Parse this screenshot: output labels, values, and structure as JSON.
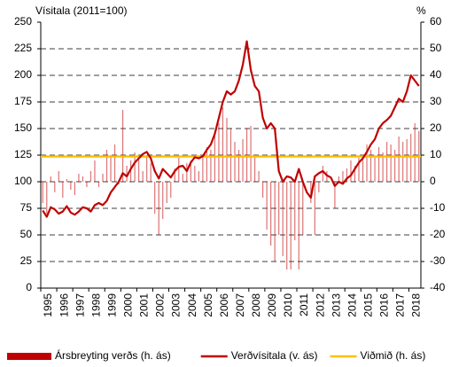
{
  "chart_data": {
    "type": "combo",
    "title": "Vísitala (2011=100)",
    "y2_label": "%",
    "categories": [
      "1995",
      null,
      null,
      null,
      "1996",
      null,
      null,
      null,
      "1997",
      null,
      null,
      null,
      "1998",
      null,
      null,
      null,
      "1999",
      null,
      null,
      null,
      "2000",
      null,
      null,
      null,
      "2001",
      null,
      null,
      null,
      "2002",
      null,
      null,
      null,
      "2003",
      null,
      null,
      null,
      "2004",
      null,
      null,
      null,
      "2005",
      null,
      null,
      null,
      "2006",
      null,
      null,
      null,
      "2007",
      null,
      null,
      null,
      "2008",
      null,
      null,
      null,
      "2009",
      null,
      null,
      null,
      "2010",
      null,
      null,
      null,
      "2011",
      null,
      null,
      null,
      "2012",
      null,
      null,
      null,
      "2013",
      null,
      null,
      null,
      "2014",
      null,
      null,
      null,
      "2015",
      null,
      null,
      null,
      "2016",
      null,
      null,
      null,
      "2017",
      null,
      null,
      null,
      "2018",
      null,
      null
    ],
    "series": [
      {
        "name": "Ársbreyting verðs (h. ás)",
        "type": "bar",
        "axis": "y2",
        "color": "#c00000",
        "values": [
          -8,
          -12,
          2,
          -4,
          4,
          -6,
          1,
          -3,
          -5,
          3,
          2,
          -2,
          4,
          8,
          -2,
          3,
          12,
          10,
          14,
          -1,
          27,
          6,
          8,
          11,
          9,
          4,
          10,
          7,
          -12,
          -20,
          -14,
          -8,
          -6,
          5,
          9,
          3,
          7,
          8,
          6,
          4,
          10,
          13,
          12,
          18,
          22,
          28,
          24,
          20,
          15,
          12,
          16,
          20,
          21,
          10,
          4,
          -6,
          -18,
          -24,
          -30,
          -20,
          -28,
          -33,
          -33,
          -22,
          -33,
          -20,
          0,
          -8,
          -20,
          -4,
          6,
          4,
          0,
          -10,
          2,
          4,
          5,
          8,
          6,
          9,
          10,
          14,
          12,
          9,
          13,
          11,
          15,
          14,
          12,
          17,
          15,
          16,
          18,
          22,
          19
        ]
      },
      {
        "name": "Verðvísitala (v. ás)",
        "type": "line",
        "color": "#c00000",
        "values": [
          73,
          67,
          76,
          74,
          70,
          72,
          77,
          71,
          69,
          72,
          76,
          75,
          72,
          78,
          80,
          78,
          82,
          90,
          95,
          100,
          108,
          105,
          112,
          118,
          122,
          126,
          128,
          122,
          110,
          103,
          112,
          108,
          104,
          110,
          114,
          115,
          110,
          118,
          123,
          122,
          124,
          130,
          135,
          145,
          160,
          175,
          185,
          182,
          185,
          195,
          210,
          232,
          205,
          190,
          185,
          160,
          150,
          155,
          150,
          110,
          100,
          105,
          104,
          100,
          112,
          100,
          90,
          85,
          105,
          108,
          110,
          106,
          104,
          96,
          100,
          98,
          103,
          106,
          112,
          118,
          122,
          128,
          135,
          140,
          150,
          155,
          158,
          162,
          170,
          178,
          175,
          185,
          200,
          195,
          190
        ]
      }
    ],
    "reference": {
      "name": "Viðmið (h. ás)",
      "color": "#ffc000",
      "axis": "y2",
      "value": 9.5
    },
    "ylim": [
      0,
      250
    ],
    "yticks": [
      0,
      25,
      50,
      75,
      100,
      125,
      150,
      175,
      200,
      225,
      250
    ],
    "y2lim": [
      -40,
      60
    ],
    "y2ticks": [
      -40,
      -30,
      -20,
      -10,
      0,
      10,
      20,
      30,
      40,
      50,
      60
    ],
    "grid": true
  }
}
